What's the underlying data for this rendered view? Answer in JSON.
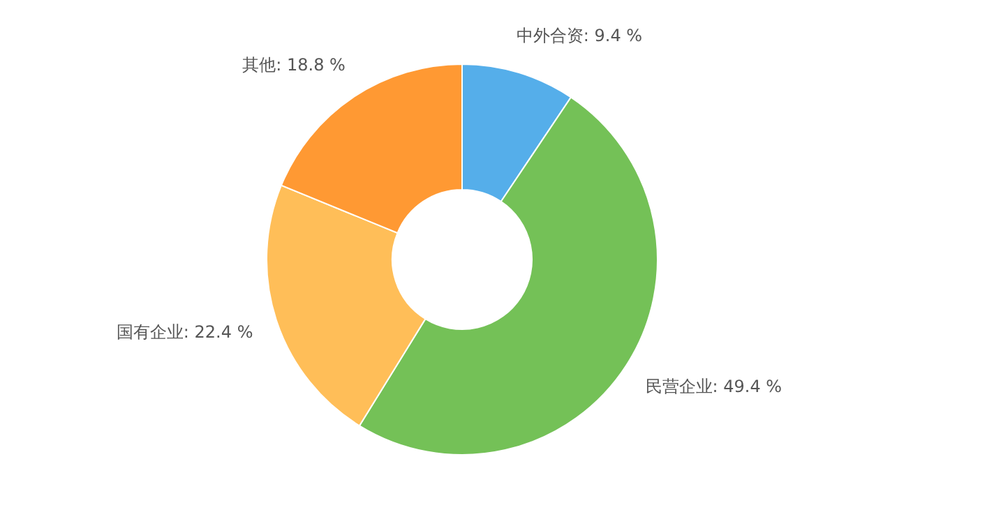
{
  "chart_data": {
    "type": "donut",
    "categories": [
      "中外合资",
      "民营企业",
      "国有企业",
      "其他"
    ],
    "values": [
      9.4,
      49.4,
      22.4,
      18.8
    ],
    "value_labels": [
      "9.4 %",
      "49.4 %",
      "22.4 %",
      "18.8 %"
    ],
    "colors": [
      "#55aeea",
      "#74c157",
      "#ffbe58",
      "#ff9933"
    ]
  }
}
